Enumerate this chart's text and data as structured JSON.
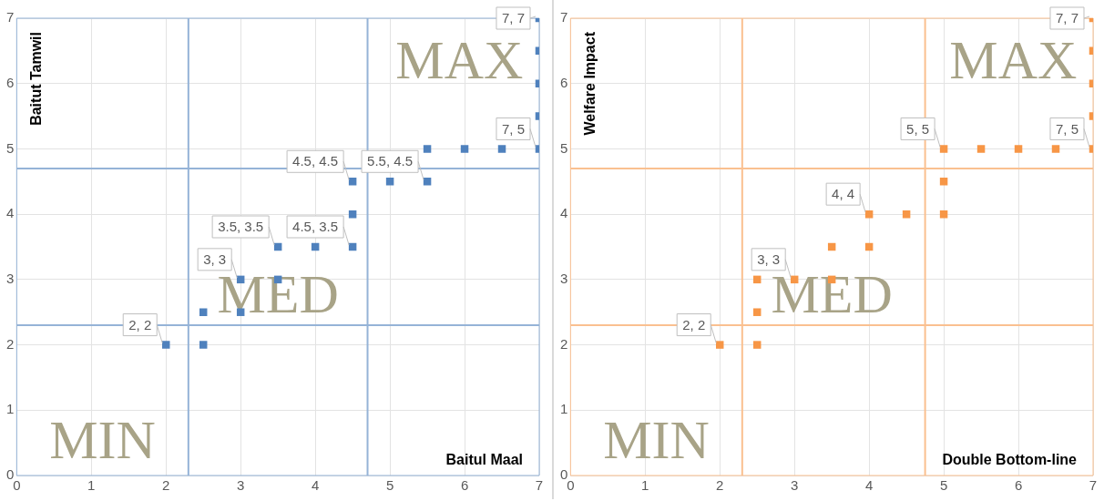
{
  "chart_data": [
    {
      "type": "scatter",
      "xlabel": "Baitul Maal",
      "ylabel": "Baitut Tamwil",
      "marker": "square",
      "grid": true,
      "legend": false,
      "xlim": [
        0,
        7
      ],
      "ylim": [
        0,
        7
      ],
      "xticks": [
        0,
        1,
        2,
        3,
        4,
        5,
        6,
        7
      ],
      "yticks": [
        0,
        1,
        2,
        3,
        4,
        5,
        6,
        7
      ],
      "series": [
        {
          "color": "#4f81bd",
          "x": [
            2,
            2.5,
            2.5,
            3,
            3,
            3.5,
            3.5,
            4,
            4.5,
            4.5,
            4.5,
            5,
            5.5,
            5.5,
            6,
            6.5,
            7,
            7,
            7,
            7,
            7
          ],
          "values": [
            2,
            2,
            2.5,
            2.5,
            3,
            3,
            3.5,
            3.5,
            3.5,
            4,
            4.5,
            4.5,
            4.5,
            5,
            5,
            5,
            5,
            5.5,
            6,
            6.5,
            7
          ]
        }
      ],
      "ref_lines": [
        {
          "axis": "x",
          "value": 2.3,
          "color": "#95b3d7"
        },
        {
          "axis": "x",
          "value": 4.7,
          "color": "#95b3d7"
        },
        {
          "axis": "y",
          "value": 2.3,
          "color": "#95b3d7"
        },
        {
          "axis": "y",
          "value": 4.7,
          "color": "#95b3d7"
        }
      ],
      "annotations": [
        "MIN",
        "MED",
        "MAX",
        {
          "text": "2, 2",
          "x": 2,
          "y": 2
        },
        {
          "text": "3, 3",
          "x": 3,
          "y": 3
        },
        {
          "text": "3.5, 3.5",
          "x": 3.5,
          "y": 3.5
        },
        {
          "text": "4.5, 3.5",
          "x": 4.5,
          "y": 3.5
        },
        {
          "text": "4.5, 4.5",
          "x": 4.5,
          "y": 4.5
        },
        {
          "text": "5.5, 4.5",
          "x": 5.5,
          "y": 4.5
        },
        {
          "text": "7, 5",
          "x": 7,
          "y": 5
        },
        {
          "text": "7, 7",
          "x": 7,
          "y": 7
        }
      ]
    },
    {
      "type": "scatter",
      "xlabel": "Double Bottom-line",
      "ylabel": "Welfare Impact",
      "marker": "square",
      "grid": true,
      "legend": false,
      "xlim": [
        0,
        7
      ],
      "ylim": [
        0,
        7
      ],
      "xticks": [
        0,
        1,
        2,
        3,
        4,
        5,
        6,
        7
      ],
      "yticks": [
        0,
        1,
        2,
        3,
        4,
        5,
        6,
        7
      ],
      "series": [
        {
          "color": "#f79646",
          "x": [
            2,
            2.5,
            2.5,
            2.5,
            3,
            3.5,
            3.5,
            4,
            4,
            4.5,
            5,
            5,
            5,
            5.5,
            6,
            6.5,
            7,
            7,
            7,
            7,
            7
          ],
          "values": [
            2,
            2,
            2.5,
            3,
            3,
            3,
            3.5,
            3.5,
            4,
            4,
            4,
            4.5,
            5,
            5,
            5,
            5,
            5,
            5.5,
            6,
            6.5,
            7
          ]
        }
      ],
      "ref_lines": [
        {
          "axis": "x",
          "value": 2.3,
          "color": "#fac090"
        },
        {
          "axis": "x",
          "value": 4.75,
          "color": "#fac090"
        },
        {
          "axis": "y",
          "value": 2.3,
          "color": "#fac090"
        },
        {
          "axis": "y",
          "value": 4.7,
          "color": "#fac090"
        }
      ],
      "annotations": [
        "MIN",
        "MED",
        "MAX",
        {
          "text": "2, 2",
          "x": 2,
          "y": 2
        },
        {
          "text": "3, 3",
          "x": 3,
          "y": 3
        },
        {
          "text": "4, 4",
          "x": 4,
          "y": 4
        },
        {
          "text": "5, 5",
          "x": 5,
          "y": 5
        },
        {
          "text": "7, 5",
          "x": 7,
          "y": 5
        },
        {
          "text": "7, 7",
          "x": 7,
          "y": 7
        }
      ]
    }
  ]
}
